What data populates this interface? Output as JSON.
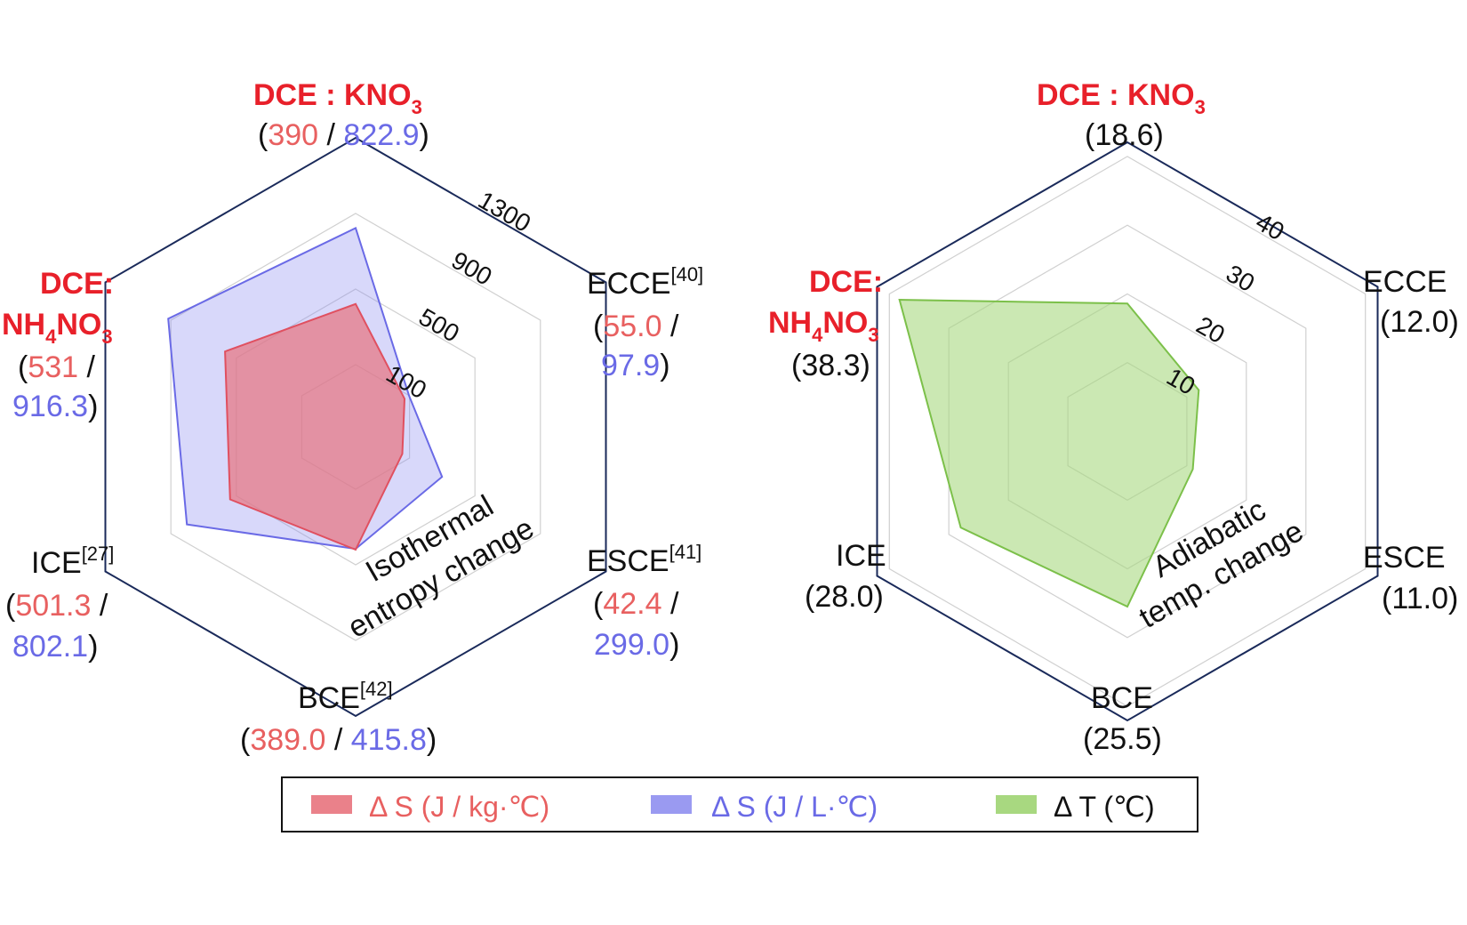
{
  "colors": {
    "red": "#e8202a",
    "mass_fill": "#e8737d",
    "mass_text": "#e86060",
    "vol_fill": "#8f8ff0",
    "vol_text": "#6a6ae6",
    "dt_fill": "#a8d880",
    "frame": "#1a2a5a",
    "grid": "#d0d0d0"
  },
  "chart_data": [
    {
      "type": "radar",
      "annotation": [
        "Isothermal",
        "entropy change"
      ],
      "axis_ticks": [
        "100",
        "500",
        "900",
        "1300"
      ],
      "axes": [
        {
          "name": "DCE : KNO",
          "sub": "3",
          "sup": "",
          "highlight": true,
          "value_mass": 390,
          "value_vol": 822.9,
          "v1": "390",
          "v2": "822.9"
        },
        {
          "name": "ECCE",
          "sub": "",
          "sup": "[40]",
          "highlight": false,
          "value_mass": 55.0,
          "value_vol": 97.9,
          "v1": "55.0",
          "v2": "97.9"
        },
        {
          "name": "ESCE",
          "sub": "",
          "sup": "[41]",
          "highlight": false,
          "value_mass": 42.4,
          "value_vol": 299.0,
          "v1": "42.4",
          "v2": "299.0"
        },
        {
          "name": "BCE",
          "sub": "",
          "sup": "[42]",
          "highlight": false,
          "value_mass": 389.0,
          "value_vol": 415.8,
          "v1": "389.0",
          "v2": "415.8"
        },
        {
          "name": "ICE",
          "sub": "",
          "sup": "[27]",
          "highlight": false,
          "value_mass": 501.3,
          "value_vol": 802.1,
          "v1": "501.3",
          "v2": "802.1"
        },
        {
          "name_parts": [
            "DCE:",
            "NH",
            "4",
            "NO",
            "3"
          ],
          "highlight": true,
          "value_mass": 531,
          "value_vol": 916.3,
          "v1": "531",
          "v2": "916.3"
        }
      ],
      "series": [
        {
          "name": "Δ S (J / kg·℃)",
          "key": "value_mass"
        },
        {
          "name": "Δ S (J / L·℃)",
          "key": "value_vol"
        }
      ]
    },
    {
      "type": "radar",
      "annotation": [
        "Adiabatic",
        "temp. change"
      ],
      "axis_ticks": [
        "10",
        "20",
        "30",
        "40"
      ],
      "axes": [
        {
          "name": "DCE : KNO",
          "sub": "3",
          "highlight": true,
          "value": 18.6,
          "v": "(18.6)"
        },
        {
          "name": "ECCE",
          "highlight": false,
          "value": 12.0,
          "v": "(12.0)"
        },
        {
          "name": "ESCE",
          "highlight": false,
          "value": 11.0,
          "v": "(11.0)"
        },
        {
          "name": "BCE",
          "highlight": false,
          "value": 25.5,
          "v": "(25.5)"
        },
        {
          "name": "ICE",
          "highlight": false,
          "value": 28.0,
          "v": "(28.0)"
        },
        {
          "name_parts": [
            "DCE:",
            "NH",
            "4",
            "NO",
            "3"
          ],
          "highlight": true,
          "value": 38.3,
          "v": "(38.3)"
        }
      ],
      "series": [
        {
          "name": "Δ T (℃)",
          "key": "value"
        }
      ]
    }
  ],
  "legend": [
    {
      "label": "Δ S (J / kg·℃)",
      "color": "#e8737d",
      "text_color": "#e86060"
    },
    {
      "label": "Δ S (J / L·℃)",
      "color": "#8f8ff0",
      "text_color": "#6a6ae6"
    },
    {
      "label": "Δ T (℃)",
      "color": "#a8d880",
      "text_color": "#111111"
    }
  ]
}
